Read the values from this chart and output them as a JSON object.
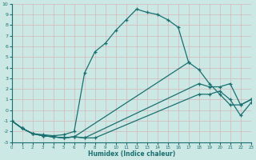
{
  "bg_color": "#cce8e5",
  "grid_color": "#c8dbd8",
  "line_color": "#1a7070",
  "xlabel": "Humidex (Indice chaleur)",
  "xlim": [
    0,
    23
  ],
  "ylim": [
    -3,
    10
  ],
  "xticks": [
    0,
    1,
    2,
    3,
    4,
    5,
    6,
    7,
    8,
    9,
    10,
    11,
    12,
    13,
    14,
    15,
    16,
    17,
    18,
    19,
    20,
    21,
    22,
    23
  ],
  "yticks": [
    -3,
    -2,
    -1,
    0,
    1,
    2,
    3,
    4,
    5,
    6,
    7,
    8,
    9,
    10
  ],
  "curve1_x": [
    0,
    1,
    2,
    3,
    4,
    5,
    6,
    7,
    8,
    9,
    10,
    11,
    12,
    13,
    14,
    15,
    16,
    17
  ],
  "curve1_y": [
    -1,
    -1.7,
    -2.2,
    -2.3,
    -2.4,
    -2.3,
    -2.0,
    3.5,
    5.5,
    6.3,
    7.5,
    8.5,
    9.5,
    9.2,
    9.0,
    8.5,
    7.8,
    4.5
  ],
  "curve2_x": [
    0,
    1,
    2,
    3,
    4,
    5,
    6,
    17,
    18,
    19,
    20,
    21,
    22,
    23
  ],
  "curve2_y": [
    -1,
    -1.7,
    -2.2,
    -2.4,
    -2.5,
    -2.6,
    -2.5,
    4.5,
    3.8,
    2.5,
    1.5,
    0.5,
    0.5,
    1.0
  ],
  "curve3_x": [
    0,
    1,
    2,
    3,
    4,
    5,
    6,
    7,
    18,
    19,
    20,
    21,
    22,
    23
  ],
  "curve3_y": [
    -1,
    -1.7,
    -2.2,
    -2.4,
    -2.5,
    -2.6,
    -2.5,
    -2.6,
    2.5,
    2.2,
    2.2,
    2.5,
    0.5,
    1.0
  ],
  "curve4_x": [
    0,
    1,
    2,
    3,
    4,
    5,
    6,
    7,
    8,
    18,
    19,
    20,
    21,
    22,
    23
  ],
  "curve4_y": [
    -1,
    -1.7,
    -2.2,
    -2.4,
    -2.5,
    -2.6,
    -2.5,
    -2.6,
    -2.6,
    1.5,
    1.5,
    1.8,
    1.0,
    -0.5,
    0.7
  ]
}
